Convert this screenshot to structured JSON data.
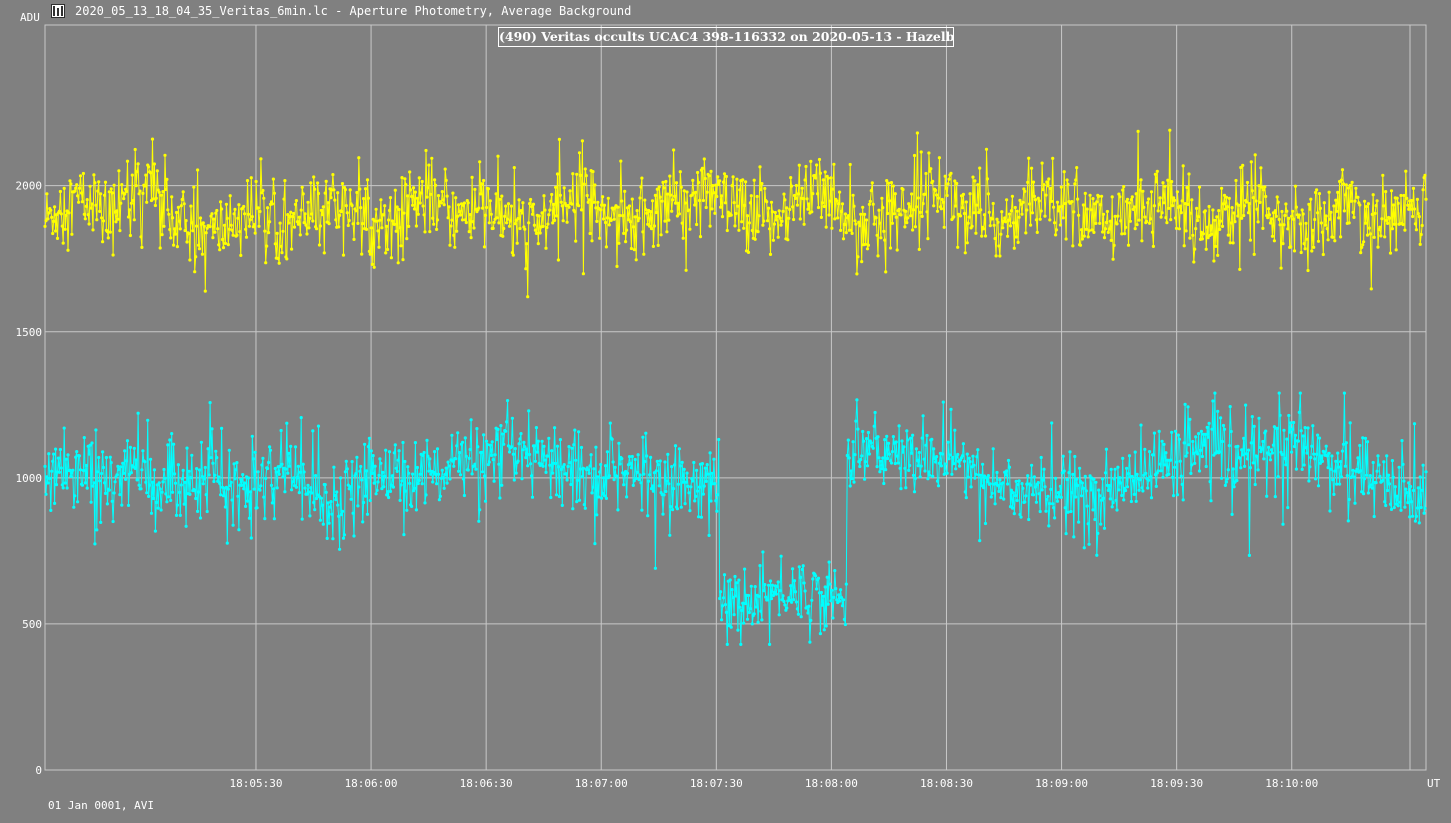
{
  "window": {
    "title": "2020_05_13_18_04_35_Veritas_6min.lc - Aperture Photometry, Average Background",
    "icon": "lightcurve-app-icon"
  },
  "footer": {
    "note": "01 Jan 0001, AVI"
  },
  "colors": {
    "background": "#808080",
    "grid": "#c8c8c8",
    "axis_text": "#ffffff",
    "comparison": "#ffff00",
    "target": "#00ffff"
  },
  "chart_data": {
    "type": "line",
    "title": "(490) Veritas occults UCAC4 398-116332 on 2020-05-13 - Hazelbrook",
    "ylabel": "ADU",
    "xlabel": "UT",
    "ylim": [
      0,
      2550
    ],
    "xlim": [
      "18:04:35",
      "18:10:35"
    ],
    "grid": true,
    "yticks": [
      0,
      500,
      1000,
      1500,
      2000
    ],
    "ytick_labels": [
      "0",
      "500",
      "1000",
      "1500",
      "2000"
    ],
    "xticks": [
      "18:05:30",
      "18:06:00",
      "18:06:30",
      "18:07:00",
      "18:07:30",
      "18:08:00",
      "18:08:30",
      "18:09:00",
      "18:09:30",
      "18:10:00"
    ],
    "series": [
      {
        "color": "#ffff00",
        "x_start": "18:04:35",
        "x_end": "18:10:35",
        "y": [
          1880,
          1930,
          1960,
          1920,
          1890,
          1980,
          2010,
          1950,
          1870,
          1850,
          1830,
          1860,
          1900,
          1910,
          1880,
          1870,
          1890,
          1920,
          1940,
          1900,
          1860,
          1880,
          1920,
          1960,
          1930,
          1900,
          1910,
          1920,
          1880,
          1850,
          1860,
          1900,
          1950,
          1980,
          1940,
          1890,
          1870,
          1900,
          1930,
          1960,
          1980,
          1950,
          1900,
          1880,
          1890,
          1920,
          1960,
          1990,
          1940,
          1900,
          1870,
          1880,
          1920,
          1960,
          1990,
          1970,
          1920,
          1880,
          1870,
          1900,
          1950,
          1980,
          1960,
          1920,
          1880,
          1860,
          1890,
          1930,
          1960,
          1930,
          1890,
          1870,
          1900,
          1940,
          1960,
          1920,
          1880,
          1870,
          1900,
          1930,
          1900,
          1870,
          1880,
          1920,
          1940
        ],
        "y_min": 1620,
        "y_max": 2190,
        "point_count": 1440
      },
      {
        "color": "#00ffff",
        "x_start": "18:04:35",
        "x_end": "18:10:35",
        "y": [
          1020,
          1050,
          1030,
          990,
          1000,
          1040,
          1010,
          960,
          970,
          1000,
          1020,
          980,
          950,
          960,
          990,
          1010,
          980,
          940,
          930,
          960,
          990,
          1010,
          1020,
          1000,
          1010,
          1040,
          1060,
          1030,
          1050,
          1090,
          1070,
          1040,
          1060,
          1050,
          1020,
          1000,
          1010,
          1030,
          1020,
          990,
          980,
          990,
          1000,
          580,
          560,
          590,
          610,
          600,
          620,
          590,
          580,
          1090,
          1100,
          1080,
          1070,
          1050,
          1060,
          1090,
          1040,
          1000,
          980,
          960,
          950,
          940,
          920,
          930,
          950,
          970,
          990,
          1010,
          1040,
          1060,
          1080,
          1100,
          1070,
          1050,
          1080,
          1100,
          1090,
          1120,
          1090,
          1060,
          1040,
          1010,
          980,
          960,
          940,
          930
        ],
        "y_min": 430,
        "y_max": 1290,
        "point_count": 1440
      }
    ]
  }
}
